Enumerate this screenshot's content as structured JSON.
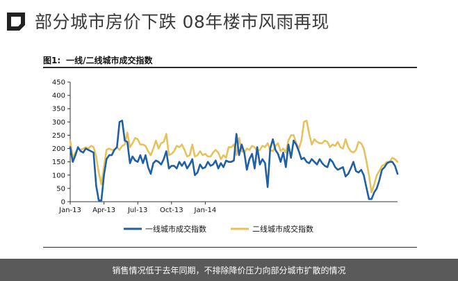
{
  "headline": "部分城市房价下跌 08年楼市风雨再现",
  "figure": {
    "label": "图1:",
    "title": "一线/二线城市成交指数"
  },
  "caption": "销售情况低于去年同期，不排除降价压力向部分城市扩散的情况",
  "colors": {
    "series1": "#1f5fa3",
    "series2": "#e6c25c",
    "brand": "#222222"
  },
  "chart_data": {
    "type": "line",
    "title": "一线/二线城市成交指数",
    "xlabel": "",
    "ylabel": "",
    "ylim": [
      0,
      450
    ],
    "yticks": [
      "0",
      "50",
      "100",
      "150",
      "200",
      "250",
      "300",
      "350",
      "400",
      "450"
    ],
    "x_tick_labels": [
      "Jan-13",
      "Apr-13",
      "Jul-13",
      "Oct-13",
      "Jan-14"
    ],
    "x_ticks_week": [
      0,
      13,
      26,
      39,
      52
    ],
    "legend_position": "bottom",
    "grid": false,
    "series": [
      {
        "name": "一线城市成交指数",
        "values": [
          205,
          150,
          175,
          205,
          190,
          185,
          200,
          195,
          190,
          185,
          60,
          5,
          5,
          100,
          160,
          175,
          175,
          195,
          205,
          300,
          305,
          230,
          225,
          145,
          170,
          155,
          150,
          175,
          145,
          175,
          130,
          105,
          145,
          155,
          150,
          140,
          160,
          190,
          125,
          135,
          135,
          125,
          150,
          135,
          150,
          125,
          140,
          160,
          100,
          110,
          140,
          125,
          130,
          150,
          135,
          140,
          155,
          125,
          145,
          130,
          155,
          150,
          150,
          155,
          255,
          175,
          215,
          185,
          120,
          160,
          180,
          125,
          205,
          140,
          160,
          145,
          55,
          200,
          235,
          195,
          180,
          150,
          185,
          130,
          215,
          165,
          230,
          215,
          190,
          160,
          165,
          150,
          145,
          160,
          150,
          140,
          160,
          145,
          135,
          130,
          160,
          150,
          130,
          120,
          125,
          130,
          95,
          105,
          125,
          150,
          115,
          110,
          120,
          100,
          55,
          10,
          10,
          35,
          50,
          80,
          120,
          130,
          145,
          150,
          150,
          135,
          105
        ]
      },
      {
        "name": "二线城市成交指数",
        "values": [
          230,
          165,
          185,
          200,
          195,
          200,
          205,
          200,
          210,
          205,
          170,
          110,
          65,
          130,
          195,
          200,
          195,
          195,
          205,
          195,
          210,
          215,
          260,
          205,
          220,
          240,
          235,
          215,
          215,
          210,
          190,
          175,
          200,
          230,
          200,
          220,
          225,
          255,
          175,
          180,
          190,
          210,
          205,
          215,
          195,
          170,
          175,
          215,
          170,
          175,
          190,
          175,
          180,
          170,
          170,
          185,
          195,
          185,
          160,
          175,
          165,
          205,
          205,
          215,
          175,
          240,
          190,
          185,
          200,
          195,
          210,
          205,
          190,
          195,
          210,
          205,
          220,
          195,
          190,
          210,
          220,
          190,
          200,
          185,
          230,
          250,
          250,
          220,
          200,
          230,
          300,
          305,
          255,
          215,
          235,
          225,
          220,
          220,
          230,
          225,
          205,
          215,
          210,
          225,
          205,
          200,
          235,
          205,
          190,
          185,
          195,
          225,
          220,
          200,
          155,
          100,
          35,
          65,
          100,
          115,
          135,
          140,
          150,
          150,
          165,
          160,
          150
        ]
      }
    ]
  }
}
